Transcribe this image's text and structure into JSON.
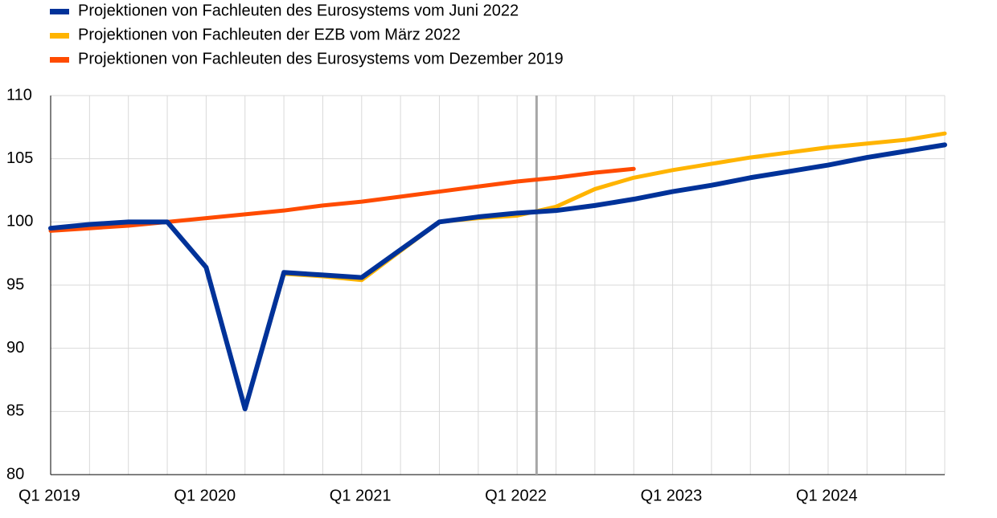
{
  "chart_data": {
    "type": "line",
    "categories": [
      "Q1 2019",
      null,
      null,
      null,
      "Q1 2020",
      null,
      null,
      null,
      "Q1 2021",
      null,
      null,
      null,
      "Q1 2022",
      null,
      null,
      null,
      "Q1 2023",
      null,
      null,
      null,
      "Q1 2024",
      null,
      null,
      null
    ],
    "series": [
      {
        "name": "Projektionen von Fachleuten des Eurosystems vom Juni 2022",
        "color": "#003299",
        "values": [
          99.5,
          99.8,
          100.0,
          100.0,
          96.4,
          85.2,
          96.0,
          95.8,
          95.6,
          97.8,
          100.0,
          100.4,
          100.7,
          100.9,
          101.3,
          101.8,
          102.4,
          102.9,
          103.5,
          104.0,
          104.5,
          105.1,
          105.6,
          106.1
        ]
      },
      {
        "name": "Projektionen von Fachleuten der EZB vom März 2022",
        "color": "#ffb400",
        "values": [
          99.5,
          99.8,
          100.0,
          100.0,
          96.4,
          85.2,
          95.9,
          95.7,
          95.4,
          97.7,
          100.0,
          100.3,
          100.5,
          101.2,
          102.6,
          103.5,
          104.1,
          104.6,
          105.1,
          105.5,
          105.9,
          106.2,
          106.5,
          107.0
        ]
      },
      {
        "name": "Projektionen von Fachleuten des Eurosystems vom Dezember 2019",
        "color": "#ff4b00",
        "values": [
          99.3,
          99.5,
          99.7,
          100.0,
          100.3,
          100.6,
          100.9,
          101.3,
          101.6,
          102.0,
          102.4,
          102.8,
          103.2,
          103.5,
          103.9,
          104.2,
          null,
          null,
          null,
          null,
          null,
          null,
          null,
          null
        ]
      }
    ],
    "ylim": [
      80,
      110
    ],
    "yticks": [
      80,
      85,
      90,
      95,
      100,
      105,
      110
    ],
    "grid": true
  }
}
